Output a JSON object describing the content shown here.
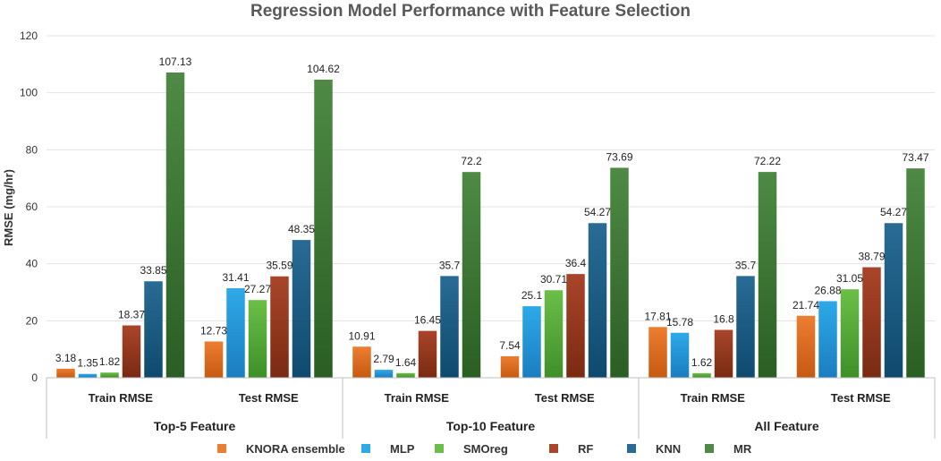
{
  "chart_data": {
    "type": "bar",
    "title": "Regression Model Performance with Feature Selection",
    "xlabel": "",
    "ylabel": "RMSE (mg/hr)",
    "ylim": [
      0,
      120
    ],
    "yticks": [
      0,
      20,
      40,
      60,
      80,
      100,
      120
    ],
    "grid": true,
    "legend_position": "bottom",
    "groups": [
      {
        "name": "Top-5 Feature",
        "categories": [
          "Train RMSE",
          "Test RMSE"
        ]
      },
      {
        "name": "Top-10 Feature",
        "categories": [
          "Train RMSE",
          "Test RMSE"
        ]
      },
      {
        "name": "All Feature",
        "categories": [
          "Train RMSE",
          "Test RMSE"
        ]
      }
    ],
    "categories": [
      "Top-5 Feature / Train RMSE",
      "Top-5 Feature / Test RMSE",
      "Top-10 Feature / Train RMSE",
      "Top-10 Feature / Test RMSE",
      "All Feature / Train RMSE",
      "All Feature / Test RMSE"
    ],
    "series": [
      {
        "name": "KNORA ensemble",
        "color": "#ED7D31",
        "dark": "#C55A11",
        "values": [
          3.18,
          12.73,
          10.91,
          7.54,
          17.81,
          21.74
        ]
      },
      {
        "name": "MLP",
        "color": "#2EA9E8",
        "dark": "#1B7DC0",
        "values": [
          1.35,
          31.41,
          2.79,
          25.1,
          15.78,
          26.88
        ]
      },
      {
        "name": "SMOreg",
        "color": "#6BBF47",
        "dark": "#3F8F2A",
        "values": [
          1.82,
          27.27,
          1.64,
          30.71,
          1.62,
          31.05
        ]
      },
      {
        "name": "RF",
        "color": "#A9452A",
        "dark": "#7A2A12",
        "values": [
          18.37,
          35.59,
          16.45,
          36.4,
          16.8,
          38.79
        ]
      },
      {
        "name": "KNN",
        "color": "#286B94",
        "dark": "#0F4A6E",
        "values": [
          33.85,
          48.35,
          35.7,
          54.27,
          35.7,
          54.27
        ]
      },
      {
        "name": "MR",
        "color": "#4E8A45",
        "dark": "#2A5E23",
        "values": [
          107.13,
          104.62,
          72.2,
          73.69,
          72.22,
          73.47
        ]
      }
    ]
  }
}
